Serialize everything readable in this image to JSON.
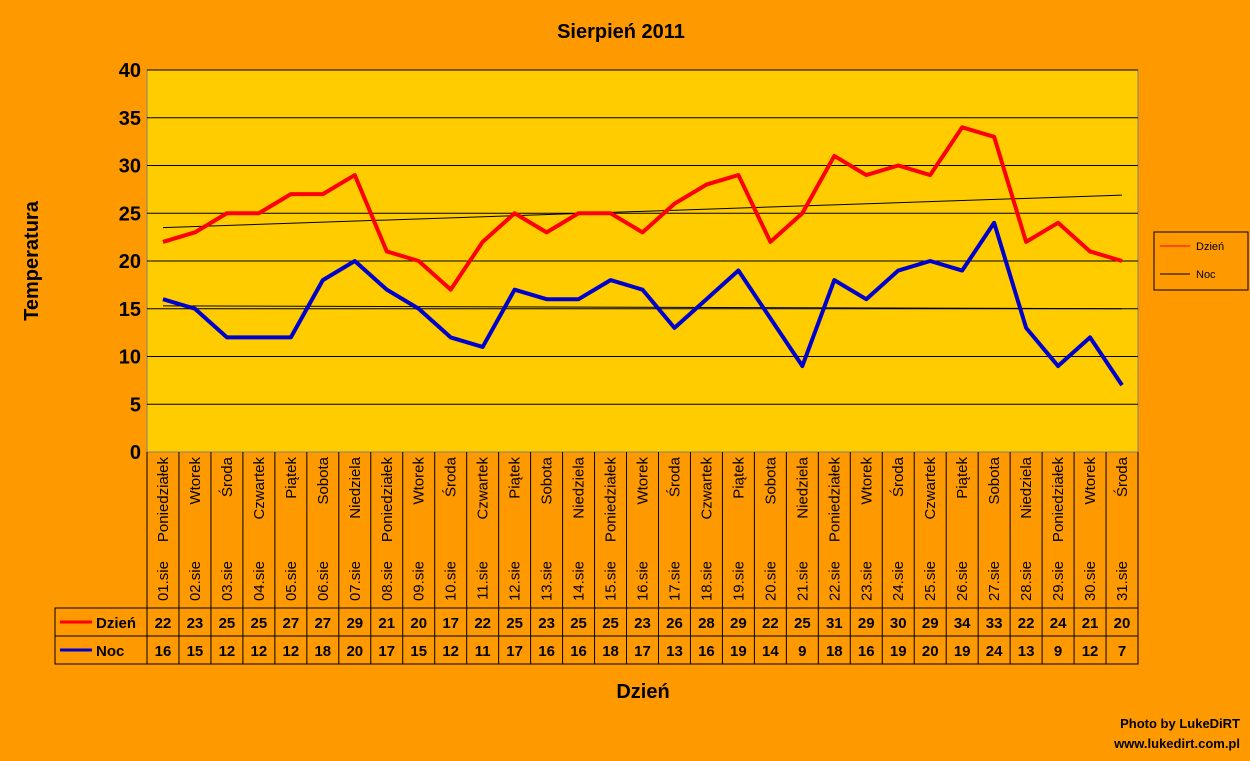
{
  "chart_data": {
    "type": "line",
    "title": "Sierpień 2011",
    "xlabel": "Dzień",
    "ylabel": "Temperatura",
    "ylim": [
      0,
      40
    ],
    "yticks": [
      0,
      5,
      10,
      15,
      20,
      25,
      30,
      35,
      40
    ],
    "grid": true,
    "legend_placement": "right",
    "weekdays": [
      "Poniedziałek",
      "Wtorek",
      "Środa",
      "Czwartek",
      "Piątek",
      "Sobota",
      "Niedziela",
      "Poniedziałek",
      "Wtorek",
      "Środa",
      "Czwartek",
      "Piątek",
      "Sobota",
      "Niedziela",
      "Poniedziałek",
      "Wtorek",
      "Środa",
      "Czwartek",
      "Piątek",
      "Sobota",
      "Niedziela",
      "Poniedziałek",
      "Wtorek",
      "Środa",
      "Czwartek",
      "Piątek",
      "Sobota",
      "Niedziela",
      "Poniedziałek",
      "Wtorek",
      "Środa"
    ],
    "categories": [
      "01.sie",
      "02.sie",
      "03.sie",
      "04.sie",
      "05.sie",
      "06.sie",
      "07.sie",
      "08.sie",
      "09.sie",
      "10.sie",
      "11.sie",
      "12.sie",
      "13.sie",
      "14.sie",
      "15.sie",
      "16.sie",
      "17.sie",
      "18.sie",
      "19.sie",
      "20.sie",
      "21.sie",
      "22.sie",
      "23.sie",
      "24.sie",
      "25.sie",
      "26.sie",
      "27.sie",
      "28.sie",
      "29.sie",
      "30.sie",
      "31.sie"
    ],
    "series": [
      {
        "name": "Dzień",
        "color": "#FF0000",
        "values": [
          22,
          23,
          25,
          25,
          27,
          27,
          29,
          21,
          20,
          17,
          22,
          25,
          23,
          25,
          25,
          23,
          26,
          28,
          29,
          22,
          25,
          31,
          29,
          30,
          29,
          34,
          33,
          22,
          24,
          21,
          20
        ],
        "trend": [
          23.5,
          26.9
        ]
      },
      {
        "name": "Noc",
        "color": "#0000CC",
        "values": [
          16,
          15,
          12,
          12,
          12,
          18,
          20,
          17,
          15,
          12,
          11,
          17,
          16,
          16,
          18,
          17,
          13,
          16,
          19,
          14,
          9,
          18,
          16,
          19,
          20,
          19,
          24,
          13,
          9,
          12,
          7
        ],
        "trend": [
          15.3,
          15.0
        ]
      }
    ],
    "credit": [
      "Photo by LukeDiRT",
      "www.lukedirt.com.pl"
    ]
  }
}
